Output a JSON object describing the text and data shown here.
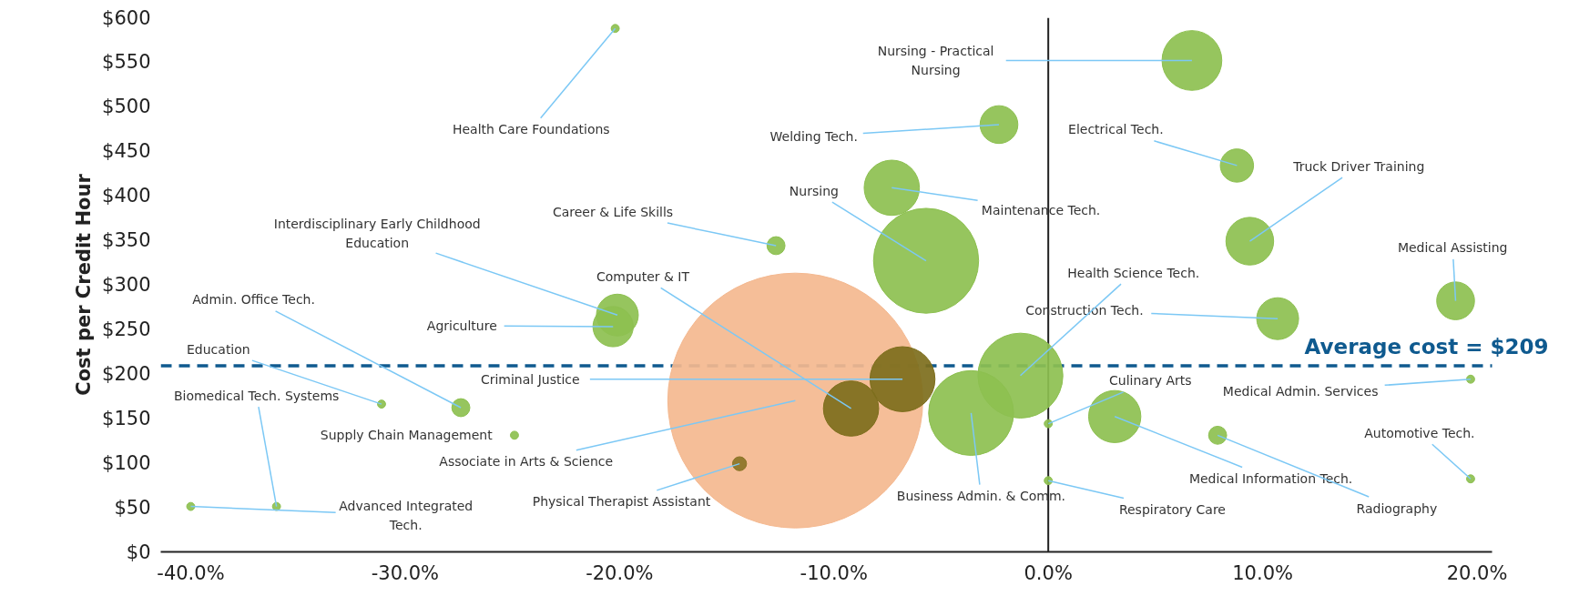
{
  "chart_data": {
    "type": "bubble",
    "ylabel": "Cost per Credit Hour",
    "xlim": [
      -41.4,
      20.7
    ],
    "ylim": [
      0,
      600
    ],
    "xticks": [
      {
        "value": -40,
        "label": "-40.0%"
      },
      {
        "value": -30,
        "label": "-30.0%"
      },
      {
        "value": -20,
        "label": "-20.0%"
      },
      {
        "value": -10,
        "label": "-10.0%"
      },
      {
        "value": 0,
        "label": "0.0%"
      },
      {
        "value": 10,
        "label": "10.0%"
      },
      {
        "value": 20,
        "label": "20.0%"
      }
    ],
    "yticks": [
      {
        "value": 0,
        "label": "$0"
      },
      {
        "value": 50,
        "label": "$50"
      },
      {
        "value": 100,
        "label": "$100"
      },
      {
        "value": 150,
        "label": "$150"
      },
      {
        "value": 200,
        "label": "$200"
      },
      {
        "value": 250,
        "label": "$250"
      },
      {
        "value": 300,
        "label": "$300"
      },
      {
        "value": 350,
        "label": "$350"
      },
      {
        "value": 400,
        "label": "$400"
      },
      {
        "value": 450,
        "label": "$450"
      },
      {
        "value": 500,
        "label": "$500"
      },
      {
        "value": 550,
        "label": "$550"
      },
      {
        "value": 600,
        "label": "$600"
      }
    ],
    "x": [
      -11.8,
      -20.2,
      6.7,
      -2.3,
      8.8,
      -7.3,
      -5.7,
      9.4,
      -12.7,
      19.0,
      -20.1,
      -20.3,
      10.7,
      -1.3,
      -6.8,
      -9.2,
      -3.6,
      0.0,
      3.1,
      0.0,
      7.9,
      19.7,
      19.7,
      -31.1,
      -27.4,
      -24.9,
      -36.0,
      -40.0,
      -14.4
    ],
    "values": [
      170,
      588,
      552,
      480,
      434,
      409,
      327,
      349,
      344,
      282,
      266,
      253,
      262,
      198,
      194,
      161,
      156,
      144,
      152,
      80,
      131,
      194,
      82,
      166,
      162,
      131,
      51,
      51,
      99
    ],
    "sizes": [
      1,
      0.001,
      0.055,
      0.022,
      0.017,
      0.047,
      0.17,
      0.035,
      0.005,
      0.022,
      0.027,
      0.025,
      0.027,
      0.111,
      0.065,
      0.047,
      0.111,
      0.001,
      0.042,
      0.001,
      0.005,
      0.001,
      0.001,
      0.001,
      0.005,
      0.001,
      0.001,
      0.001,
      0.003
    ],
    "colors": [
      "#f4b88f",
      "#8dc050",
      "#8dc050",
      "#8dc050",
      "#8dc050",
      "#8dc050",
      "#8dc050",
      "#8dc050",
      "#8dc050",
      "#8dc050",
      "#8dc050",
      "#8dc050",
      "#8dc050",
      "#8dc050",
      "#7d6e1c",
      "#7d6e1c",
      "#8dc050",
      "#8dc050",
      "#8dc050",
      "#8dc050",
      "#8dc050",
      "#8dc050",
      "#8dc050",
      "#8dc050",
      "#8dc050",
      "#8dc050",
      "#8dc050",
      "#8dc050",
      "#8a7426"
    ],
    "annotations": [
      {
        "text": "Associate in Arts & Science",
        "x": -11.8,
        "y": 170
      },
      {
        "text": "Health Care Foundations",
        "x": -20.2,
        "y": 588
      },
      {
        "text": "Nursing - Practical\nNursing",
        "x": 6.7,
        "y": 552
      },
      {
        "text": "Welding Tech.",
        "x": -2.3,
        "y": 480
      },
      {
        "text": "Electrical Tech.",
        "x": 8.8,
        "y": 434
      },
      {
        "text": "Maintenance Tech.",
        "x": -7.3,
        "y": 409
      },
      {
        "text": "Nursing",
        "x": -5.7,
        "y": 327
      },
      {
        "text": "Truck Driver Training",
        "x": 9.4,
        "y": 349
      },
      {
        "text": "Career & Life Skills",
        "x": -12.7,
        "y": 344
      },
      {
        "text": "Medical Assisting",
        "x": 19.0,
        "y": 282
      },
      {
        "text": "Interdisciplinary Early Childhood\nEducation",
        "x": -20.1,
        "y": 266
      },
      {
        "text": "Agriculture",
        "x": -20.3,
        "y": 253
      },
      {
        "text": "Construction Tech.",
        "x": 10.7,
        "y": 262
      },
      {
        "text": "Health Science Tech.",
        "x": -1.3,
        "y": 198
      },
      {
        "text": "Criminal Justice",
        "x": -6.8,
        "y": 194
      },
      {
        "text": "Computer & IT",
        "x": -9.2,
        "y": 161
      },
      {
        "text": "Business Admin. & Comm.",
        "x": -3.6,
        "y": 156
      },
      {
        "text": "Culinary Arts",
        "x": 0.0,
        "y": 144
      },
      {
        "text": "Medical Information Tech.",
        "x": 3.1,
        "y": 152
      },
      {
        "text": "Respiratory Care",
        "x": 0.0,
        "y": 80
      },
      {
        "text": "Radiography",
        "x": 7.9,
        "y": 131
      },
      {
        "text": "Medical Admin. Services",
        "x": 19.7,
        "y": 194
      },
      {
        "text": "Automotive Tech.",
        "x": 19.7,
        "y": 82
      },
      {
        "text": "Education",
        "x": -31.1,
        "y": 166
      },
      {
        "text": "Admin. Office Tech.",
        "x": -27.4,
        "y": 162
      },
      {
        "text": "Supply Chain Management",
        "x": -24.9,
        "y": 131
      },
      {
        "text": "Biomedical Tech. Systems",
        "x": -36.0,
        "y": 51
      },
      {
        "text": "Advanced Integrated\nTech.",
        "x": -40.0,
        "y": 51
      },
      {
        "text": "Physical Therapist Assistant",
        "x": -14.4,
        "y": 99
      }
    ],
    "ref_lines": [
      {
        "axis": "y",
        "value": 209,
        "label": "Average cost = $209",
        "color": "#0f5a8f",
        "line_style": "dashed"
      },
      {
        "axis": "x",
        "value": 0,
        "color": "#222222",
        "line_style": "solid"
      }
    ],
    "grid": false
  }
}
